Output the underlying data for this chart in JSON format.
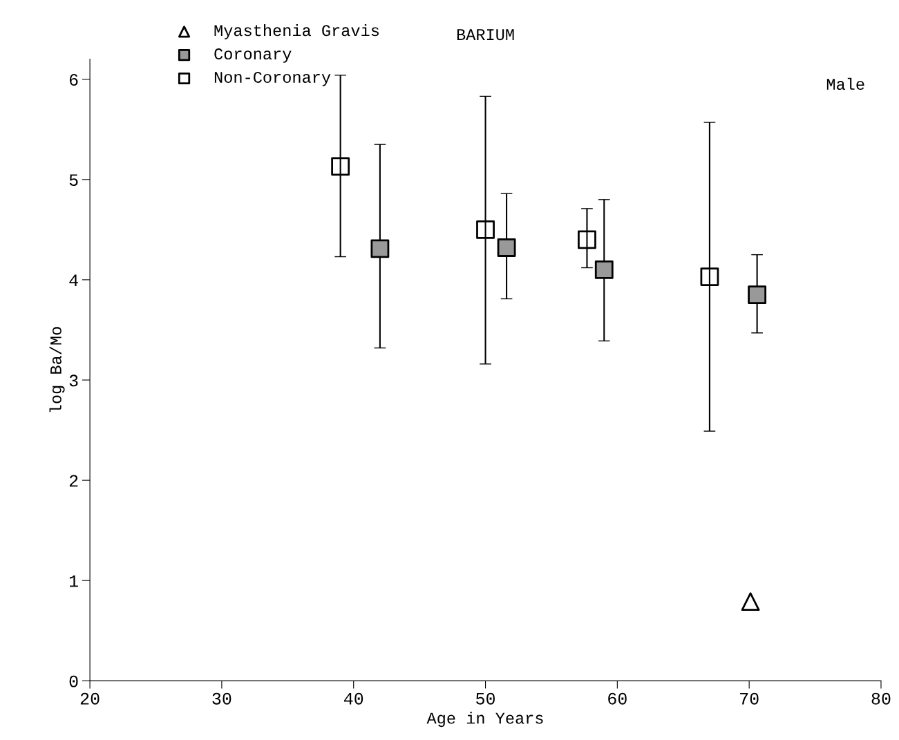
{
  "chart_data": {
    "type": "scatter",
    "title": "BARIUM",
    "xlabel": "Age in Years",
    "ylabel": "log Ba/Mo",
    "annotations": [
      "Male"
    ],
    "xlim": [
      20,
      80
    ],
    "xticks": [
      20,
      30,
      40,
      50,
      60,
      70,
      80
    ],
    "ylim": [
      0,
      6.2
    ],
    "yticks": [
      0,
      1,
      2,
      3,
      4,
      5,
      6
    ],
    "grid": false,
    "legend": "top left",
    "series": [
      {
        "name": "Myasthenia Gravis",
        "color": "#000000",
        "marker": "triangle",
        "x": [
          70.1
        ],
        "values": [
          0.79
        ]
      },
      {
        "name": "Coronary",
        "color": "#999999",
        "marker": "square",
        "x": [
          42.0,
          51.6,
          59.0,
          70.6
        ],
        "values": [
          4.31,
          4.32,
          4.1,
          3.85
        ],
        "errors": [
          [
            3.32,
            5.35
          ],
          [
            3.81,
            4.86
          ],
          [
            3.39,
            4.8
          ],
          [
            3.47,
            4.25
          ]
        ]
      },
      {
        "name": "Non-Coronary",
        "color": "#000000",
        "marker": "square",
        "x": [
          39.0,
          50.0,
          57.7,
          67.0
        ],
        "values": [
          5.13,
          4.5,
          4.4,
          4.03
        ],
        "errors": [
          [
            4.23,
            6.04
          ],
          [
            3.16,
            5.83
          ],
          [
            4.12,
            4.71
          ],
          [
            2.49,
            5.57
          ]
        ]
      }
    ]
  }
}
